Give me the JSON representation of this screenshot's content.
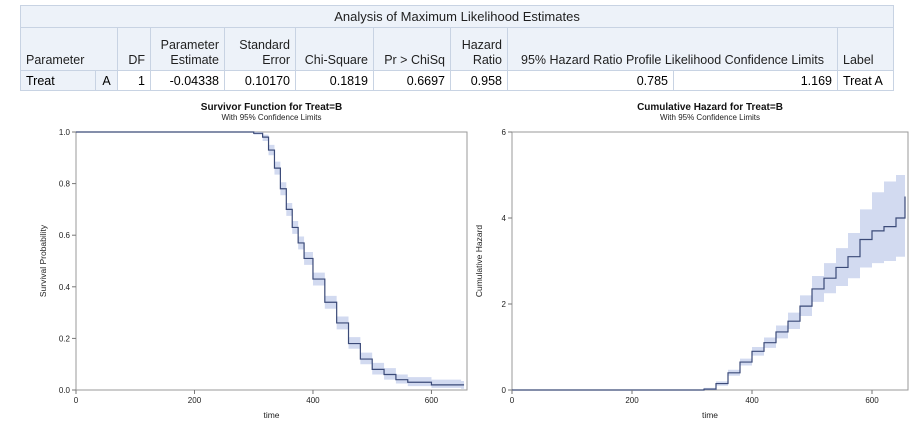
{
  "table": {
    "title": "Analysis of Maximum Likelihood Estimates",
    "headers": {
      "parameter": "Parameter",
      "df": "DF",
      "estimate_line1": "Parameter",
      "estimate_line2": "Estimate",
      "stderr_line1": "Standard",
      "stderr_line2": "Error",
      "chisq": "Chi-Square",
      "prchisq": "Pr > ChiSq",
      "hr_line1": "Hazard",
      "hr_line2": "Ratio",
      "ci": "95% Hazard Ratio Profile Likelihood Confidence Limits",
      "label": "Label"
    },
    "row": {
      "parameter": "Treat",
      "level": "A",
      "df": "1",
      "estimate": "-0.04338",
      "stderr": "0.10170",
      "chisq": "0.1819",
      "prchisq": "0.6697",
      "hr": "0.958",
      "ci_lower": "0.785",
      "ci_upper": "1.169",
      "label": "Treat A"
    }
  },
  "chart_data": [
    {
      "type": "line",
      "title": "Survivor Function for Treat=B",
      "subtitle": "With 95% Confidence Limits",
      "xlabel": "time",
      "ylabel": "Survival Probability",
      "xlim": [
        0,
        660
      ],
      "ylim": [
        0,
        1.0
      ],
      "xticks": [
        0,
        200,
        400,
        600
      ],
      "yticks": [
        0.0,
        0.2,
        0.4,
        0.6,
        0.8,
        1.0
      ],
      "ytick_labels": [
        "0.0",
        "0.2",
        "0.4",
        "0.6",
        "0.8",
        "1.0"
      ],
      "line_color": "#3b4a78",
      "band_color": "#cdd6ee",
      "x": [
        0,
        300,
        315,
        325,
        335,
        345,
        355,
        365,
        375,
        385,
        400,
        420,
        440,
        460,
        480,
        500,
        520,
        540,
        560,
        600,
        650
      ],
      "y": [
        1.0,
        0.995,
        0.98,
        0.93,
        0.86,
        0.78,
        0.7,
        0.63,
        0.57,
        0.51,
        0.43,
        0.34,
        0.26,
        0.18,
        0.12,
        0.08,
        0.06,
        0.04,
        0.03,
        0.02,
        0.02
      ],
      "lower": [
        1.0,
        0.99,
        0.965,
        0.91,
        0.835,
        0.755,
        0.675,
        0.605,
        0.545,
        0.485,
        0.405,
        0.315,
        0.235,
        0.16,
        0.1,
        0.06,
        0.04,
        0.025,
        0.015,
        0.008,
        0.005
      ],
      "upper": [
        1.0,
        1.0,
        0.99,
        0.95,
        0.885,
        0.805,
        0.725,
        0.655,
        0.595,
        0.535,
        0.455,
        0.365,
        0.285,
        0.205,
        0.145,
        0.105,
        0.085,
        0.06,
        0.05,
        0.04,
        0.035
      ]
    },
    {
      "type": "line",
      "title": "Cumulative Hazard for Treat=B",
      "subtitle": "With 95% Confidence Limits",
      "xlabel": "time",
      "ylabel": "Cumulative Hazard",
      "xlim": [
        0,
        660
      ],
      "ylim": [
        0,
        6
      ],
      "xticks": [
        0,
        200,
        400,
        600
      ],
      "yticks": [
        0,
        2,
        4,
        6
      ],
      "ytick_labels": [
        "0",
        "2",
        "4",
        "6"
      ],
      "line_color": "#3b4a78",
      "band_color": "#cdd6ee",
      "x": [
        0,
        320,
        340,
        360,
        380,
        400,
        420,
        440,
        460,
        480,
        500,
        520,
        540,
        560,
        580,
        600,
        620,
        640,
        655
      ],
      "y": [
        0,
        0.02,
        0.15,
        0.4,
        0.65,
        0.9,
        1.1,
        1.35,
        1.6,
        1.95,
        2.35,
        2.6,
        2.85,
        3.1,
        3.5,
        3.7,
        3.8,
        4.0,
        4.5
      ],
      "lower": [
        0,
        0.0,
        0.1,
        0.33,
        0.57,
        0.8,
        0.98,
        1.2,
        1.42,
        1.72,
        2.05,
        2.25,
        2.42,
        2.6,
        2.85,
        2.95,
        3.0,
        3.1,
        3.2
      ],
      "upper": [
        0,
        0.05,
        0.2,
        0.47,
        0.73,
        1.0,
        1.22,
        1.5,
        1.8,
        2.2,
        2.65,
        2.95,
        3.3,
        3.65,
        4.2,
        4.6,
        4.85,
        5.0,
        5.0
      ]
    }
  ]
}
